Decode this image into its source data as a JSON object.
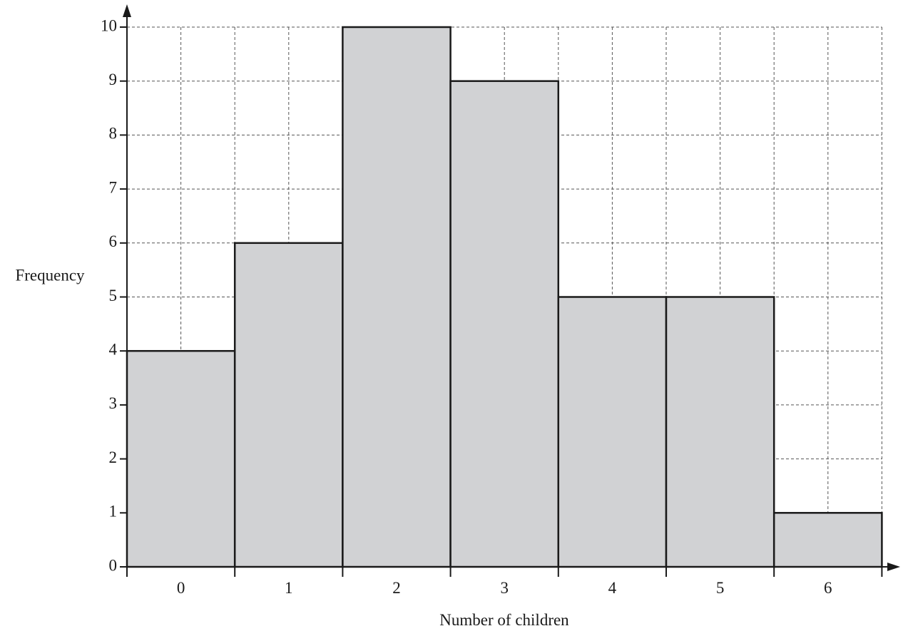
{
  "chart_data": {
    "type": "bar",
    "title": "",
    "xlabel": "Number of children",
    "ylabel": "Frequency",
    "categories": [
      "0",
      "1",
      "2",
      "3",
      "4",
      "5",
      "6"
    ],
    "values": [
      4,
      6,
      10,
      9,
      5,
      5,
      1
    ],
    "ylim": [
      0,
      10
    ],
    "yticks": [
      0,
      1,
      2,
      3,
      4,
      5,
      6,
      7,
      8,
      9,
      10
    ],
    "grid": true,
    "grid_style": "dashed",
    "bar_color": "#d1d2d4",
    "edge_color": "#1a1a1a"
  }
}
